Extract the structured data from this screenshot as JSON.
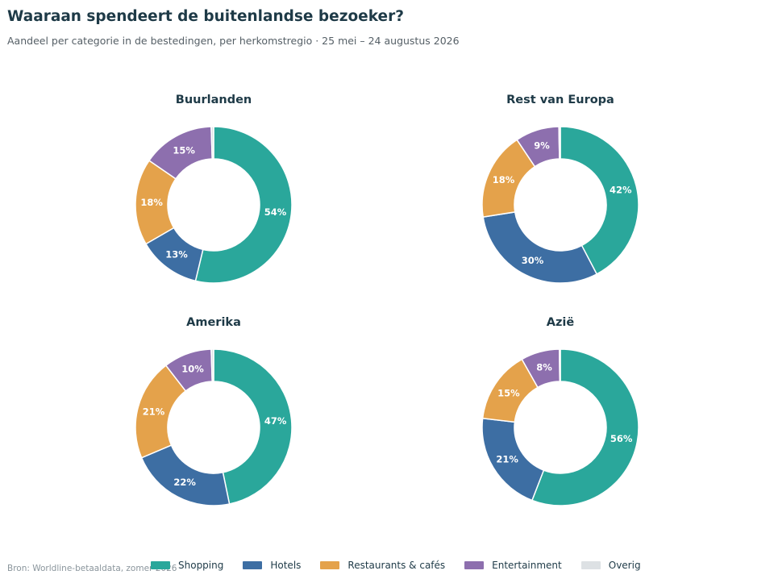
{
  "title": "Waaraan spendeert de buitenlandse bezoeker?",
  "subtitle": "Aandeel per categorie in de bestedingen, per herkomstregio · 25 mei – 24 augustus 2026",
  "source": "Bron: Worldline-betaaldata, zomer 2026",
  "categories": [
    "Shopping",
    "Hotels",
    "Restaurants & cafés",
    "Entertainment",
    "Overig"
  ],
  "colors": [
    "#2aa79b",
    "#3d6ea3",
    "#e4a24b",
    "#8d6fae",
    "#dde1e4"
  ],
  "chart_data": [
    {
      "type": "pie",
      "variant": "donut",
      "title": "Buurlanden",
      "categories": [
        "Shopping",
        "Hotels",
        "Restaurants & cafés",
        "Entertainment",
        "Overig"
      ],
      "values": [
        54,
        13,
        18,
        15,
        0.5
      ],
      "labels": [
        "54%",
        "13%",
        "18%",
        "15%",
        ""
      ]
    },
    {
      "type": "pie",
      "variant": "donut",
      "title": "Rest van Europa",
      "categories": [
        "Shopping",
        "Hotels",
        "Restaurants & cafés",
        "Entertainment",
        "Overig"
      ],
      "values": [
        42,
        30,
        18,
        9,
        0.3
      ],
      "labels": [
        "42%",
        "30%",
        "18%",
        "9%",
        ""
      ]
    },
    {
      "type": "pie",
      "variant": "donut",
      "title": "Amerika",
      "categories": [
        "Shopping",
        "Hotels",
        "Restaurants & cafés",
        "Entertainment",
        "Overig"
      ],
      "values": [
        47,
        22,
        21,
        10,
        0.5
      ],
      "labels": [
        "47%",
        "22%",
        "21%",
        "10%",
        ""
      ]
    },
    {
      "type": "pie",
      "variant": "donut",
      "title": "Azië",
      "categories": [
        "Shopping",
        "Hotels",
        "Restaurants & cafés",
        "Entertainment",
        "Overig"
      ],
      "values": [
        56,
        21,
        15,
        8,
        0.2
      ],
      "labels": [
        "56%",
        "21%",
        "15%",
        "8%",
        ""
      ]
    }
  ]
}
